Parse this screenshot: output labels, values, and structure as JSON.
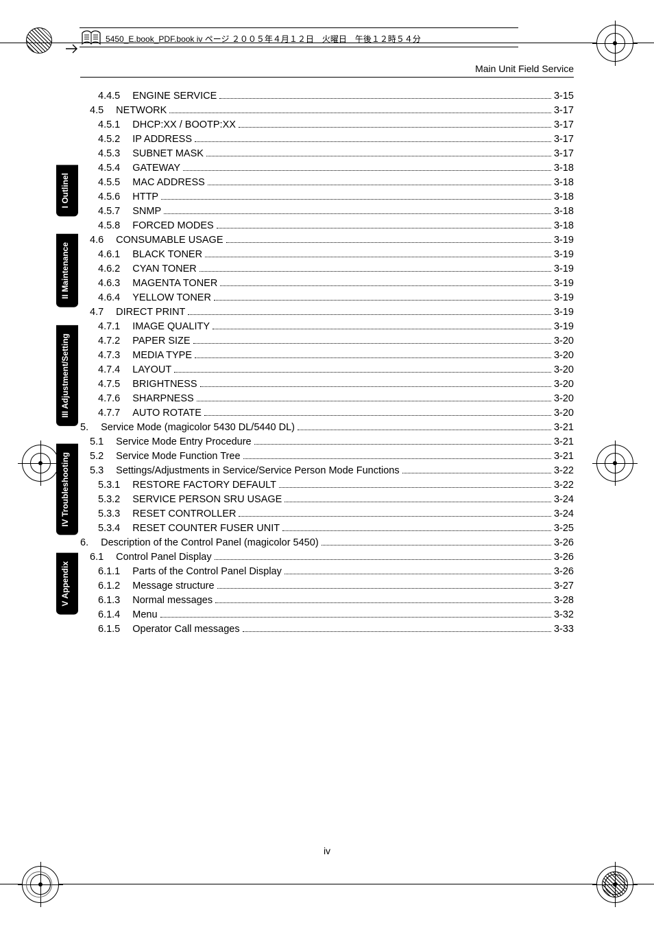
{
  "meta_text": "5450_E.book_PDF.book  iv ページ  ２００５年４月１２日　火曜日　午後１２時５４分",
  "header_right": "Main Unit Field Service",
  "page_number_footer": "iv",
  "side_tabs": [
    {
      "name": "tab-outline",
      "label": "I Outlinel"
    },
    {
      "name": "tab-maintenance",
      "label": "II Maintenance"
    },
    {
      "name": "tab-adjustment",
      "label": "III Adjustment/Setting"
    },
    {
      "name": "tab-trouble",
      "label": "IV Troubleshooting"
    },
    {
      "name": "tab-appendix",
      "label": "V Appendix"
    }
  ],
  "toc": [
    {
      "lvl": 3,
      "num": "4.4.5",
      "label": "ENGINE SERVICE",
      "page": "3-15"
    },
    {
      "lvl": 2,
      "num": "4.5",
      "label": "NETWORK",
      "page": "3-17"
    },
    {
      "lvl": 3,
      "num": "4.5.1",
      "label": "DHCP:XX / BOOTP:XX",
      "page": "3-17"
    },
    {
      "lvl": 3,
      "num": "4.5.2",
      "label": "IP ADDRESS",
      "page": "3-17"
    },
    {
      "lvl": 3,
      "num": "4.5.3",
      "label": "SUBNET MASK",
      "page": "3-17"
    },
    {
      "lvl": 3,
      "num": "4.5.4",
      "label": "GATEWAY",
      "page": "3-18"
    },
    {
      "lvl": 3,
      "num": "4.5.5",
      "label": "MAC ADDRESS",
      "page": "3-18"
    },
    {
      "lvl": 3,
      "num": "4.5.6",
      "label": "HTTP",
      "page": "3-18"
    },
    {
      "lvl": 3,
      "num": "4.5.7",
      "label": "SNMP",
      "page": "3-18"
    },
    {
      "lvl": 3,
      "num": "4.5.8",
      "label": "FORCED MODES",
      "page": "3-18"
    },
    {
      "lvl": 2,
      "num": "4.6",
      "label": "CONSUMABLE USAGE",
      "page": "3-19"
    },
    {
      "lvl": 3,
      "num": "4.6.1",
      "label": "BLACK TONER",
      "page": "3-19"
    },
    {
      "lvl": 3,
      "num": "4.6.2",
      "label": "CYAN TONER",
      "page": "3-19"
    },
    {
      "lvl": 3,
      "num": "4.6.3",
      "label": "MAGENTA TONER",
      "page": "3-19"
    },
    {
      "lvl": 3,
      "num": "4.6.4",
      "label": "YELLOW TONER",
      "page": "3-19"
    },
    {
      "lvl": 2,
      "num": "4.7",
      "label": "DIRECT PRINT",
      "page": "3-19"
    },
    {
      "lvl": 3,
      "num": "4.7.1",
      "label": "IMAGE QUALITY",
      "page": "3-19"
    },
    {
      "lvl": 3,
      "num": "4.7.2",
      "label": "PAPER SIZE",
      "page": "3-20"
    },
    {
      "lvl": 3,
      "num": "4.7.3",
      "label": "MEDIA TYPE",
      "page": "3-20"
    },
    {
      "lvl": 3,
      "num": "4.7.4",
      "label": "LAYOUT",
      "page": "3-20"
    },
    {
      "lvl": 3,
      "num": "4.7.5",
      "label": "BRIGHTNESS",
      "page": "3-20"
    },
    {
      "lvl": 3,
      "num": "4.7.6",
      "label": "SHARPNESS",
      "page": "3-20"
    },
    {
      "lvl": 3,
      "num": "4.7.7",
      "label": "AUTO ROTATE",
      "page": "3-20"
    },
    {
      "lvl": 1,
      "num": "5.",
      "label": "Service Mode (magicolor 5430 DL/5440 DL)",
      "page": "3-21"
    },
    {
      "lvl": 2,
      "num": "5.1",
      "label": "Service Mode Entry Procedure",
      "page": "3-21"
    },
    {
      "lvl": 2,
      "num": "5.2",
      "label": "Service Mode Function Tree",
      "page": "3-21"
    },
    {
      "lvl": 2,
      "num": "5.3",
      "label": "Settings/Adjustments in Service/Service Person Mode Functions",
      "page": "3-22"
    },
    {
      "lvl": 3,
      "num": "5.3.1",
      "label": "RESTORE FACTORY DEFAULT",
      "page": "3-22"
    },
    {
      "lvl": 3,
      "num": "5.3.2",
      "label": "SERVICE PERSON SRU USAGE",
      "page": "3-24"
    },
    {
      "lvl": 3,
      "num": "5.3.3",
      "label": "RESET CONTROLLER",
      "page": "3-24"
    },
    {
      "lvl": 3,
      "num": "5.3.4",
      "label": "RESET COUNTER FUSER UNIT",
      "page": "3-25"
    },
    {
      "lvl": 1,
      "num": "6.",
      "label": "Description of the Control Panel (magicolor 5450)",
      "page": "3-26"
    },
    {
      "lvl": 2,
      "num": "6.1",
      "label": "Control Panel Display",
      "page": "3-26"
    },
    {
      "lvl": 3,
      "num": "6.1.1",
      "label": "Parts of the Control Panel Display",
      "page": "3-26"
    },
    {
      "lvl": 3,
      "num": "6.1.2",
      "label": "Message structure",
      "page": "3-27"
    },
    {
      "lvl": 3,
      "num": "6.1.3",
      "label": "Normal messages",
      "page": "3-28"
    },
    {
      "lvl": 3,
      "num": "6.1.4",
      "label": "Menu",
      "page": "3-32"
    },
    {
      "lvl": 3,
      "num": "6.1.5",
      "label": "Operator Call messages",
      "page": "3-33"
    }
  ]
}
